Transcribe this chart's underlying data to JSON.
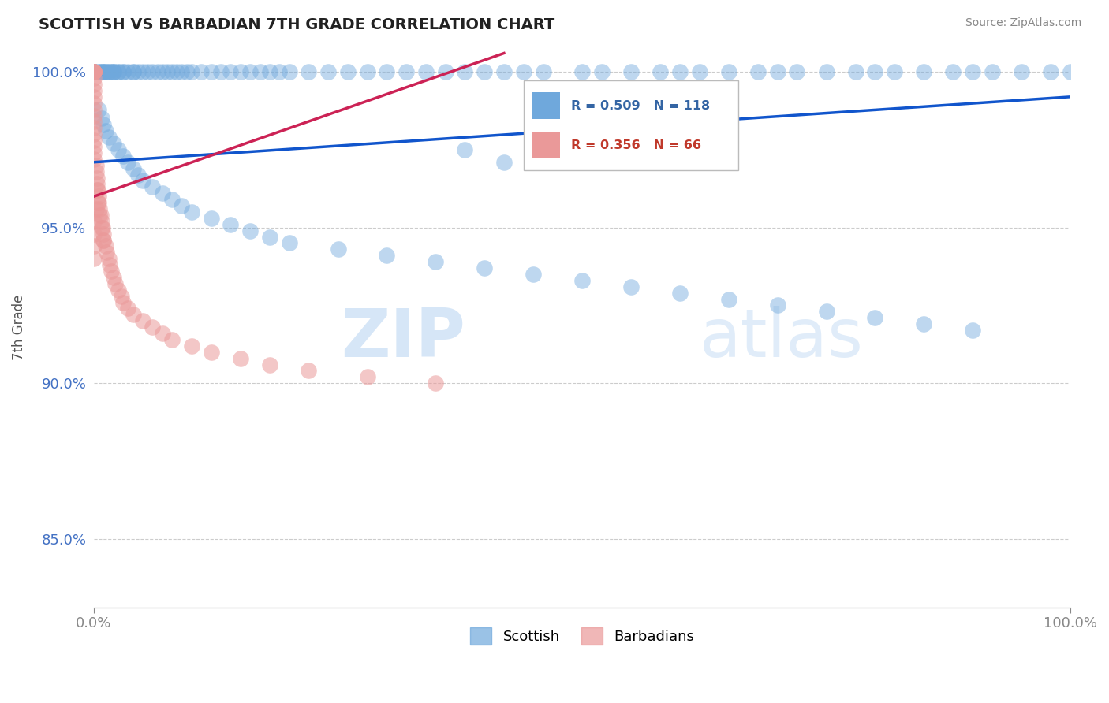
{
  "title": "SCOTTISH VS BARBADIAN 7TH GRADE CORRELATION CHART",
  "source": "Source: ZipAtlas.com",
  "ylabel": "7th Grade",
  "y_ticks": [
    0.85,
    0.9,
    0.95,
    1.0
  ],
  "y_tick_labels": [
    "85.0%",
    "90.0%",
    "95.0%",
    "100.0%"
  ],
  "x_range": [
    0.0,
    1.0
  ],
  "y_range": [
    0.828,
    1.008
  ],
  "blue_R": 0.509,
  "blue_N": 118,
  "pink_R": 0.356,
  "pink_N": 66,
  "blue_color": "#6fa8dc",
  "pink_color": "#ea9999",
  "blue_line_color": "#1155cc",
  "pink_line_color": "#cc2255",
  "watermark_zip": "ZIP",
  "watermark_atlas": "atlas",
  "legend_label_blue": "Scottish",
  "legend_label_pink": "Barbadians",
  "blue_line_x": [
    0.0,
    1.0
  ],
  "blue_line_y": [
    0.971,
    0.992
  ],
  "pink_line_x": [
    0.0,
    0.42
  ],
  "pink_line_y": [
    0.96,
    1.006
  ],
  "blue_scatter_x": [
    0.0,
    0.0,
    0.0,
    0.0,
    0.005,
    0.005,
    0.008,
    0.008,
    0.01,
    0.01,
    0.012,
    0.012,
    0.015,
    0.015,
    0.018,
    0.02,
    0.02,
    0.02,
    0.025,
    0.025,
    0.03,
    0.03,
    0.035,
    0.04,
    0.04,
    0.045,
    0.05,
    0.055,
    0.06,
    0.065,
    0.07,
    0.075,
    0.08,
    0.085,
    0.09,
    0.095,
    0.1,
    0.11,
    0.12,
    0.13,
    0.14,
    0.15,
    0.16,
    0.17,
    0.18,
    0.19,
    0.2,
    0.22,
    0.24,
    0.26,
    0.28,
    0.3,
    0.32,
    0.34,
    0.36,
    0.38,
    0.4,
    0.42,
    0.44,
    0.46,
    0.5,
    0.52,
    0.55,
    0.58,
    0.6,
    0.62,
    0.65,
    0.68,
    0.7,
    0.72,
    0.75,
    0.78,
    0.8,
    0.82,
    0.85,
    0.88,
    0.9,
    0.92,
    0.95,
    0.98,
    0.005,
    0.008,
    0.01,
    0.012,
    0.015,
    0.02,
    0.025,
    0.03,
    0.035,
    0.04,
    0.045,
    0.05,
    0.06,
    0.07,
    0.08,
    0.09,
    0.1,
    0.12,
    0.14,
    0.16,
    0.18,
    0.2,
    0.25,
    0.3,
    0.35,
    0.4,
    0.45,
    0.5,
    0.55,
    0.6,
    0.65,
    0.7,
    0.75,
    0.8,
    0.85,
    0.9,
    1.0,
    0.38,
    0.42
  ],
  "blue_scatter_y": [
    1.0,
    1.0,
    1.0,
    1.0,
    1.0,
    1.0,
    1.0,
    1.0,
    1.0,
    1.0,
    1.0,
    1.0,
    1.0,
    1.0,
    1.0,
    1.0,
    1.0,
    1.0,
    1.0,
    1.0,
    1.0,
    1.0,
    1.0,
    1.0,
    1.0,
    1.0,
    1.0,
    1.0,
    1.0,
    1.0,
    1.0,
    1.0,
    1.0,
    1.0,
    1.0,
    1.0,
    1.0,
    1.0,
    1.0,
    1.0,
    1.0,
    1.0,
    1.0,
    1.0,
    1.0,
    1.0,
    1.0,
    1.0,
    1.0,
    1.0,
    1.0,
    1.0,
    1.0,
    1.0,
    1.0,
    1.0,
    1.0,
    1.0,
    1.0,
    1.0,
    1.0,
    1.0,
    1.0,
    1.0,
    1.0,
    1.0,
    1.0,
    1.0,
    1.0,
    1.0,
    1.0,
    1.0,
    1.0,
    1.0,
    1.0,
    1.0,
    1.0,
    1.0,
    1.0,
    1.0,
    0.988,
    0.985,
    0.983,
    0.981,
    0.979,
    0.977,
    0.975,
    0.973,
    0.971,
    0.969,
    0.967,
    0.965,
    0.963,
    0.961,
    0.959,
    0.957,
    0.955,
    0.953,
    0.951,
    0.949,
    0.947,
    0.945,
    0.943,
    0.941,
    0.939,
    0.937,
    0.935,
    0.933,
    0.931,
    0.929,
    0.927,
    0.925,
    0.923,
    0.921,
    0.919,
    0.917,
    1.0,
    0.975,
    0.971
  ],
  "pink_scatter_x": [
    0.0,
    0.0,
    0.0,
    0.0,
    0.0,
    0.0,
    0.0,
    0.0,
    0.0,
    0.0,
    0.0,
    0.0,
    0.0,
    0.0,
    0.0,
    0.0,
    0.0,
    0.0,
    0.0,
    0.0,
    0.002,
    0.002,
    0.003,
    0.003,
    0.004,
    0.005,
    0.005,
    0.006,
    0.007,
    0.008,
    0.009,
    0.01,
    0.01,
    0.012,
    0.013,
    0.015,
    0.016,
    0.018,
    0.02,
    0.022,
    0.025,
    0.028,
    0.03,
    0.035,
    0.04,
    0.05,
    0.06,
    0.07,
    0.08,
    0.1,
    0.12,
    0.15,
    0.18,
    0.22,
    0.28,
    0.35,
    0.0,
    0.0,
    0.0,
    0.0,
    0.002,
    0.003,
    0.004,
    0.006,
    0.008,
    0.01
  ],
  "pink_scatter_y": [
    1.0,
    1.0,
    1.0,
    1.0,
    1.0,
    1.0,
    0.998,
    0.996,
    0.994,
    0.992,
    0.99,
    0.988,
    0.986,
    0.984,
    0.982,
    0.98,
    0.978,
    0.976,
    0.974,
    0.972,
    0.97,
    0.968,
    0.966,
    0.964,
    0.962,
    0.96,
    0.958,
    0.956,
    0.954,
    0.952,
    0.95,
    0.948,
    0.946,
    0.944,
    0.942,
    0.94,
    0.938,
    0.936,
    0.934,
    0.932,
    0.93,
    0.928,
    0.926,
    0.924,
    0.922,
    0.92,
    0.918,
    0.916,
    0.914,
    0.912,
    0.91,
    0.908,
    0.906,
    0.904,
    0.902,
    0.9,
    0.952,
    0.948,
    0.944,
    0.94,
    0.956,
    0.962,
    0.958,
    0.954,
    0.95,
    0.946
  ]
}
